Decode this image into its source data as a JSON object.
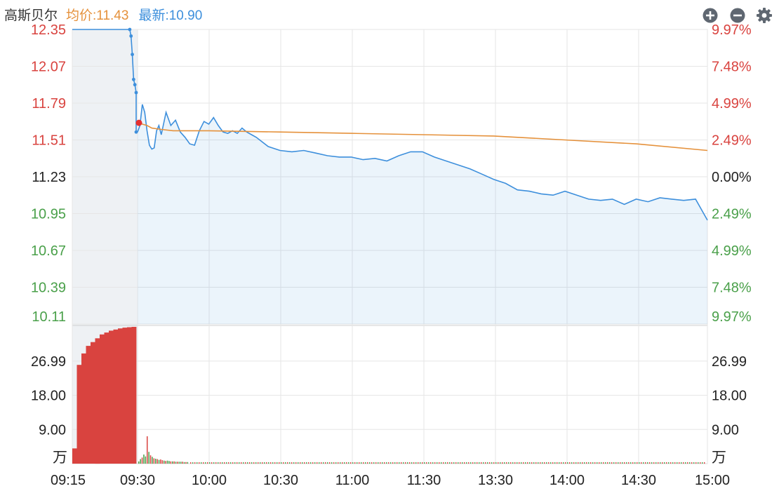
{
  "header": {
    "name": "高斯贝尔",
    "avg_label": "均价:",
    "avg_value": "11.43",
    "last_label": "最新:",
    "last_value": "10.90",
    "icons": [
      "zoom-in-icon",
      "zoom-out-icon",
      "settings-gear-icon"
    ]
  },
  "colors": {
    "price_line": "#3d8fdc",
    "avg_line": "#e5913b",
    "up": "#d9433f",
    "down": "#4aa04a",
    "neutral_text": "#222222",
    "grid": "#e6e6e6",
    "auction_bg": "#eef1f4"
  },
  "chart_data": [
    {
      "type": "line",
      "title": "",
      "reference_price": 11.23,
      "ylim": [
        10.11,
        12.35
      ],
      "y_ticks": [
        "12.35",
        "12.07",
        "11.79",
        "11.51",
        "11.23",
        "10.95",
        "10.67",
        "10.39",
        "10.11"
      ],
      "y_right_ticks": [
        "9.97%",
        "7.48%",
        "4.99%",
        "2.49%",
        "0.00%",
        "2.49%",
        "4.99%",
        "7.48%",
        "9.97%"
      ],
      "x_ticks": [
        "09:15",
        "09:30",
        "10:00",
        "10:30",
        "11:00",
        "11:30",
        "13:30",
        "14:00",
        "14:30",
        "15:00"
      ],
      "auction_series": {
        "name": "",
        "x": [
          "09:15",
          "09:16",
          "09:17",
          "09:18",
          "09:19",
          "09:20",
          "09:21",
          "09:22",
          "09:23",
          "09:24",
          "09:24.2",
          "09:24.4",
          "09:24.6",
          "09:24.8",
          "09:25"
        ],
        "values": [
          12.35,
          12.35,
          12.35,
          12.35,
          12.35,
          12.35,
          12.35,
          12.35,
          12.35,
          12.35,
          12.3,
          12.16,
          11.97,
          11.93,
          11.87
        ]
      },
      "series": [
        {
          "name": "最新",
          "x": [
            "09:30",
            "09:31",
            "09:32",
            "09:33",
            "09:34",
            "09:35",
            "09:36",
            "09:37",
            "09:38",
            "09:39",
            "09:40",
            "09:42",
            "09:44",
            "09:46",
            "09:48",
            "09:50",
            "09:52",
            "09:54",
            "09:56",
            "09:58",
            "10:00",
            "10:02",
            "10:04",
            "10:06",
            "10:08",
            "10:10",
            "10:12",
            "10:14",
            "10:16",
            "10:18",
            "10:20",
            "10:25",
            "10:30",
            "10:35",
            "10:40",
            "10:45",
            "10:50",
            "10:55",
            "11:00",
            "11:05",
            "11:10",
            "11:15",
            "11:20",
            "11:25",
            "11:30",
            "13:05",
            "13:10",
            "13:15",
            "13:20",
            "13:25",
            "13:30",
            "13:35",
            "13:40",
            "13:45",
            "13:50",
            "13:55",
            "14:00",
            "14:05",
            "14:10",
            "14:15",
            "14:20",
            "14:25",
            "14:30",
            "14:35",
            "14:40",
            "14:45",
            "14:50",
            "14:55",
            "15:00"
          ],
          "values": [
            11.57,
            11.62,
            11.78,
            11.72,
            11.58,
            11.47,
            11.44,
            11.45,
            11.58,
            11.62,
            11.55,
            11.72,
            11.62,
            11.66,
            11.57,
            11.53,
            11.48,
            11.47,
            11.58,
            11.65,
            11.63,
            11.68,
            11.62,
            11.57,
            11.56,
            11.58,
            11.56,
            11.6,
            11.57,
            11.55,
            11.53,
            11.46,
            11.43,
            11.42,
            11.43,
            11.41,
            11.39,
            11.38,
            11.38,
            11.36,
            11.37,
            11.35,
            11.39,
            11.42,
            11.42,
            11.38,
            11.35,
            11.32,
            11.29,
            11.25,
            11.21,
            11.18,
            11.13,
            11.12,
            11.1,
            11.09,
            11.12,
            11.09,
            11.06,
            11.05,
            11.06,
            11.02,
            11.06,
            11.04,
            11.07,
            11.06,
            11.05,
            11.06,
            10.9
          ]
        },
        {
          "name": "均价",
          "x": [
            "09:30",
            "09:31",
            "09:32",
            "09:34",
            "09:36",
            "09:40",
            "09:45",
            "09:50",
            "10:00",
            "10:30",
            "11:00",
            "11:30",
            "13:30",
            "14:00",
            "14:30",
            "15:00"
          ],
          "values": [
            11.62,
            11.64,
            11.63,
            11.62,
            11.6,
            11.59,
            11.58,
            11.58,
            11.58,
            11.57,
            11.56,
            11.55,
            11.54,
            11.51,
            11.48,
            11.43
          ]
        }
      ],
      "marker": {
        "x": "09:30",
        "value": 11.64
      }
    },
    {
      "type": "bar",
      "title": "",
      "unit": "万",
      "y_ticks": [
        "26.99",
        "18.00",
        "9.00"
      ],
      "ylim": [
        0,
        36
      ],
      "auction_volume": [
        4,
        26,
        29,
        31,
        32,
        33,
        34,
        34.5,
        35,
        35.3,
        35.6,
        35.8,
        35.9,
        36
      ],
      "auction_volume_colors": [
        "up",
        "up",
        "up",
        "up",
        "up",
        "up",
        "up",
        "up",
        "up",
        "up",
        "up",
        "up",
        "up",
        "up"
      ],
      "minute_volume": [
        0.6,
        1.2,
        1.6,
        2.4,
        1.9,
        7.2,
        3.1,
        2.2,
        1.8,
        1.4,
        1.3,
        1.2,
        1.0,
        1.1,
        0.9,
        0.8,
        0.7,
        0.8,
        0.7,
        0.6,
        0.6,
        0.6,
        0.5,
        0.5,
        0.5,
        0.5,
        0.5,
        0.4,
        0.4,
        0.4
      ],
      "minute_volume_colors": [
        "down",
        "down",
        "up",
        "down",
        "down",
        "up",
        "down",
        "up",
        "down",
        "up",
        "down",
        "up",
        "down",
        "up",
        "up",
        "down",
        "up",
        "down",
        "down",
        "up",
        "down",
        "up",
        "down",
        "up",
        "down",
        "down",
        "up",
        "down",
        "up",
        "down"
      ]
    }
  ]
}
